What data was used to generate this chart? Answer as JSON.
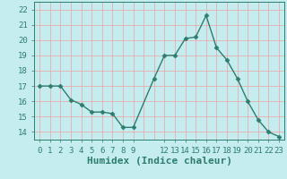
{
  "x": [
    0,
    1,
    2,
    3,
    4,
    5,
    6,
    7,
    8,
    9,
    11,
    12,
    13,
    14,
    15,
    16,
    17,
    18,
    19,
    20,
    21,
    22,
    23
  ],
  "y": [
    17,
    17,
    17,
    16.1,
    15.8,
    15.3,
    15.3,
    15.2,
    14.3,
    14.3,
    17.5,
    19.0,
    19.0,
    20.1,
    20.2,
    21.6,
    19.5,
    18.7,
    17.5,
    16.0,
    14.8,
    14.0,
    13.7
  ],
  "line_color": "#2d7d6e",
  "bg_color": "#c5edef",
  "grid_major_color": "#f0a0a0",
  "grid_minor_color": "#dce8e8",
  "xlabel": "Humidex (Indice chaleur)",
  "ylim": [
    13.5,
    22.5
  ],
  "xlim": [
    -0.5,
    23.5
  ],
  "yticks": [
    14,
    15,
    16,
    17,
    18,
    19,
    20,
    21,
    22
  ],
  "xtick_positions": [
    0,
    1,
    2,
    3,
    4,
    5,
    6,
    7,
    8,
    9,
    12,
    13,
    14,
    15,
    16,
    17,
    18,
    19,
    20,
    21,
    22,
    23
  ],
  "xtick_labels": [
    "0",
    "1",
    "2",
    "3",
    "4",
    "5",
    "6",
    "7",
    "8",
    "9",
    "12",
    "13",
    "14",
    "15",
    "16",
    "17",
    "18",
    "19",
    "20",
    "21",
    "22",
    "23"
  ],
  "marker": "D",
  "marker_size": 2.5,
  "line_width": 1.0,
  "xlabel_fontsize": 8,
  "tick_fontsize": 6.5,
  "font_family": "monospace"
}
